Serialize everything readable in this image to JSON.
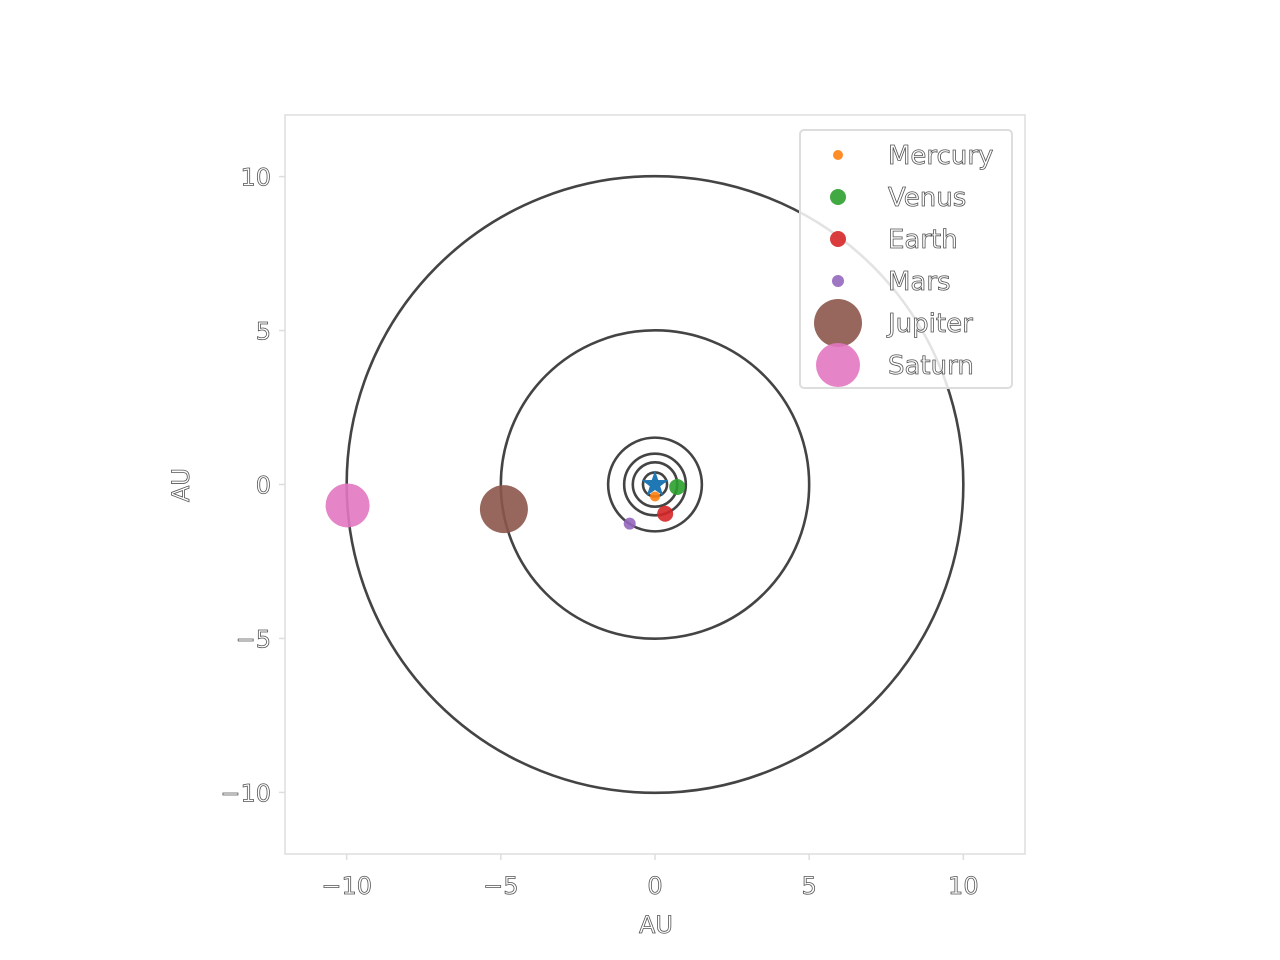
{
  "chart_data": {
    "type": "scatter",
    "title": "",
    "xlabel": "AU",
    "ylabel": "AU",
    "xlim": [
      -12,
      12
    ],
    "ylim": [
      -12,
      12
    ],
    "xticks": [
      -10,
      -5,
      0,
      5,
      10
    ],
    "yticks": [
      -10,
      -5,
      0,
      5,
      10
    ],
    "xtick_labels": [
      "−10",
      "−5",
      "0",
      "5",
      "10"
    ],
    "ytick_labels": [
      "−10",
      "−5",
      "0",
      "5",
      "10"
    ],
    "grid": false,
    "legend_position": "top-right",
    "sun": {
      "x": 0,
      "y": 0,
      "marker": "star",
      "color": "#1f77b4"
    },
    "orbits": [
      {
        "radius": 0.39
      },
      {
        "radius": 0.72
      },
      {
        "radius": 1.0
      },
      {
        "radius": 1.52
      },
      {
        "radius": 5.0
      },
      {
        "radius": 10.0
      }
    ],
    "orbit_color": "#444444",
    "series": [
      {
        "name": "Mercury",
        "x": 0.0,
        "y": -0.39,
        "color": "#ff7f0e",
        "marker_size": 5
      },
      {
        "name": "Venus",
        "x": 0.72,
        "y": -0.08,
        "color": "#2ca02c",
        "marker_size": 8
      },
      {
        "name": "Earth",
        "x": 0.33,
        "y": -0.95,
        "color": "#d62728",
        "marker_size": 8
      },
      {
        "name": "Mars",
        "x": -0.82,
        "y": -1.27,
        "color": "#9467bd",
        "marker_size": 6
      },
      {
        "name": "Jupiter",
        "x": -4.9,
        "y": -0.8,
        "color": "#8c564b",
        "marker_size": 24
      },
      {
        "name": "Saturn",
        "x": -9.97,
        "y": -0.68,
        "color": "#e377c2",
        "marker_size": 22
      }
    ]
  }
}
